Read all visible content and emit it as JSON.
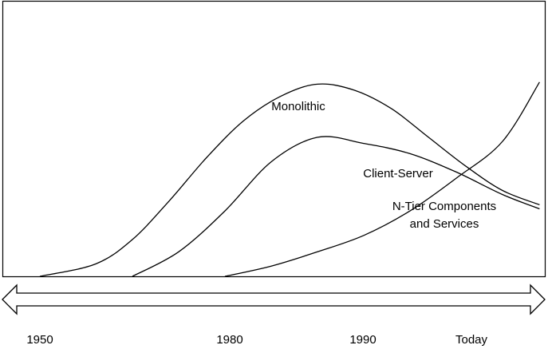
{
  "chart_data": {
    "type": "line",
    "x_ticks": [
      "1950",
      "1980",
      "1990",
      "Today"
    ],
    "grid": false,
    "legend": "none",
    "series": [
      {
        "name": "Monolithic",
        "label_lines": [
          "Monolithic"
        ],
        "points": [
          [
            0.0,
            0.0
          ],
          [
            0.6,
            0.06
          ],
          [
            1.0,
            0.18
          ],
          [
            1.4,
            0.37
          ],
          [
            1.8,
            0.58
          ],
          [
            2.2,
            0.76
          ],
          [
            2.6,
            0.88
          ],
          [
            3.0,
            0.94
          ],
          [
            3.4,
            0.91
          ],
          [
            3.8,
            0.82
          ],
          [
            4.2,
            0.68
          ],
          [
            4.6,
            0.54
          ],
          [
            5.0,
            0.42
          ],
          [
            5.4,
            0.35
          ]
        ]
      },
      {
        "name": "Client-Server",
        "label_lines": [
          "Client-Server"
        ],
        "points": [
          [
            1.0,
            0.0
          ],
          [
            1.5,
            0.12
          ],
          [
            2.0,
            0.32
          ],
          [
            2.5,
            0.56
          ],
          [
            3.0,
            0.68
          ],
          [
            3.5,
            0.65
          ],
          [
            4.0,
            0.6
          ],
          [
            4.5,
            0.51
          ],
          [
            5.0,
            0.4
          ],
          [
            5.4,
            0.33
          ]
        ]
      },
      {
        "name": "N-Tier Components and Services",
        "label_lines": [
          "N-Tier Components",
          "and Services"
        ],
        "points": [
          [
            2.0,
            0.0
          ],
          [
            2.5,
            0.05
          ],
          [
            3.0,
            0.12
          ],
          [
            3.5,
            0.2
          ],
          [
            4.0,
            0.32
          ],
          [
            4.5,
            0.48
          ],
          [
            5.0,
            0.66
          ],
          [
            5.4,
            0.95
          ]
        ]
      }
    ]
  }
}
